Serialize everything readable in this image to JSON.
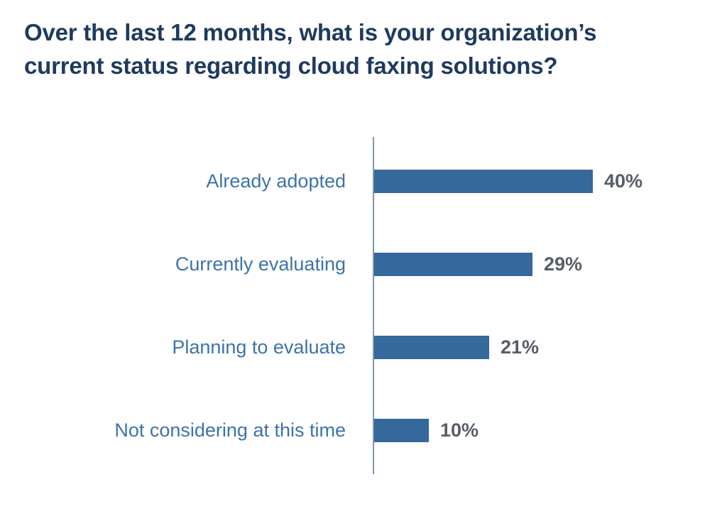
{
  "header": {
    "title_line1": "Over the last 12 months, what is your organization’s",
    "title_line2": "current status regarding cloud faxing solutions?"
  },
  "chart_data": {
    "type": "bar",
    "orientation": "horizontal",
    "title": "Over the last 12 months, what is your organization’s current status regarding cloud faxing solutions?",
    "categories": [
      "Already adopted",
      "Currently evaluating",
      "Planning to evaluate",
      "Not considering at this time"
    ],
    "values": [
      40,
      29,
      21,
      10
    ],
    "value_labels": [
      "40%",
      "29%",
      "21%",
      "10%"
    ],
    "xlabel": "",
    "ylabel": "",
    "xlim": [
      0,
      40
    ],
    "grid": false,
    "legend": "none",
    "value_label_position": "right-of-bar",
    "category_label_position": "left-of-axis"
  },
  "colors": {
    "title": "#1F3A5F",
    "bar": "#35689B",
    "category": "#3D73AA",
    "value": "#575E67",
    "axis": "#7E97B2",
    "background": "#FFFFFF"
  }
}
